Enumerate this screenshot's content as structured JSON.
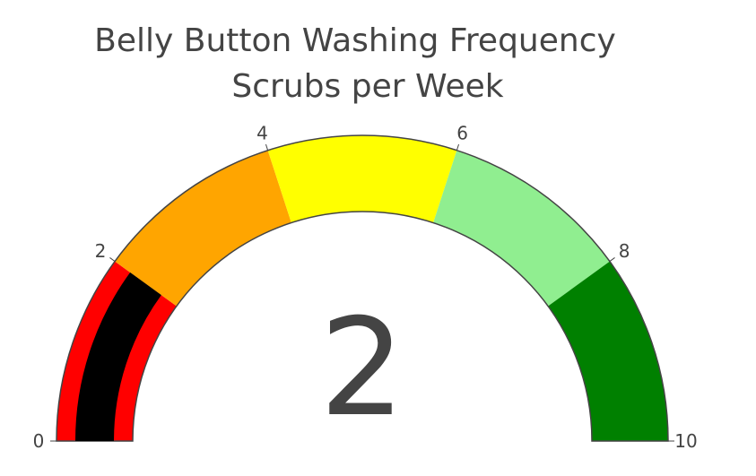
{
  "chart_data": {
    "type": "gauge",
    "title_lines": [
      "Belly Button Washing Frequency",
      "Scrubs per Week"
    ],
    "value": 2,
    "value_label": "2",
    "range": [
      0,
      10
    ],
    "ticks": [
      {
        "value": 0,
        "label": "0"
      },
      {
        "value": 2,
        "label": "2"
      },
      {
        "value": 4,
        "label": "4"
      },
      {
        "value": 6,
        "label": "6"
      },
      {
        "value": 8,
        "label": "8"
      },
      {
        "value": 10,
        "label": "10"
      }
    ],
    "steps": [
      {
        "range": [
          0,
          2
        ],
        "color": "#ff0000"
      },
      {
        "range": [
          2,
          4
        ],
        "color": "#ffa500"
      },
      {
        "range": [
          4,
          6
        ],
        "color": "#ffff00"
      },
      {
        "range": [
          6,
          8
        ],
        "color": "#90ee90"
      },
      {
        "range": [
          8,
          10
        ],
        "color": "#008000"
      }
    ],
    "bar_color": "#000000",
    "border_color": "#444444",
    "text_color": "#444444"
  }
}
